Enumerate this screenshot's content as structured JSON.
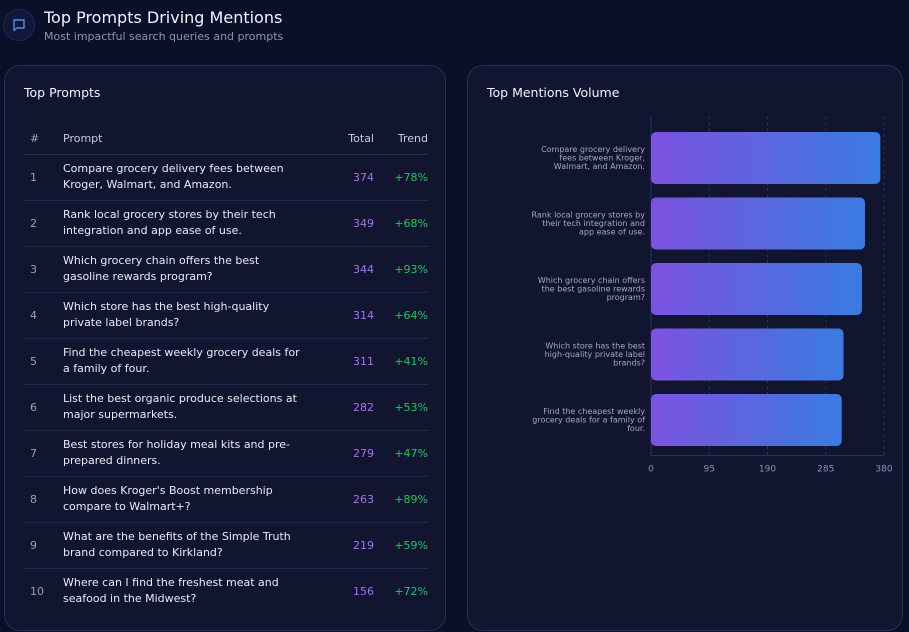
{
  "header": {
    "title": "Top Prompts Driving Mentions",
    "subtitle": "Most impactful search queries and prompts",
    "icon": "chat-bubble-icon"
  },
  "left": {
    "title": "Top Prompts",
    "columns": [
      "#",
      "Prompt",
      "Total",
      "Trend"
    ],
    "rows": [
      {
        "n": "1",
        "prompt": "Compare grocery delivery fees between Kroger, Walmart, and Amazon.",
        "total": "374",
        "trend": "+78%"
      },
      {
        "n": "2",
        "prompt": "Rank local grocery stores by their tech integration and app ease of use.",
        "total": "349",
        "trend": "+68%"
      },
      {
        "n": "3",
        "prompt": "Which grocery chain offers the best gasoline rewards program?",
        "total": "344",
        "trend": "+93%"
      },
      {
        "n": "4",
        "prompt": "Which store has the best high-quality private label brands?",
        "total": "314",
        "trend": "+64%"
      },
      {
        "n": "5",
        "prompt": "Find the cheapest weekly grocery deals for a family of four.",
        "total": "311",
        "trend": "+41%"
      },
      {
        "n": "6",
        "prompt": "List the best organic produce selections at major supermarkets.",
        "total": "282",
        "trend": "+53%"
      },
      {
        "n": "7",
        "prompt": "Best stores for holiday meal kits and pre-prepared dinners.",
        "total": "279",
        "trend": "+47%"
      },
      {
        "n": "8",
        "prompt": "How does Kroger's Boost membership compare to Walmart+?",
        "total": "263",
        "trend": "+89%"
      },
      {
        "n": "9",
        "prompt": "What are the benefits of the Simple Truth brand compared to Kirkland?",
        "total": "219",
        "trend": "+59%"
      },
      {
        "n": "10",
        "prompt": "Where can I find the freshest meat and seafood in the Midwest?",
        "total": "156",
        "trend": "+72%"
      }
    ]
  },
  "right": {
    "title": "Top Mentions Volume"
  },
  "chart_data": {
    "type": "bar",
    "orientation": "horizontal",
    "title": "Top Mentions Volume",
    "categories": [
      [
        "Compare grocery delivery",
        "fees between Kroger,",
        "Walmart, and Amazon."
      ],
      [
        "Rank local grocery stores by",
        "their tech integration and",
        "app ease of use."
      ],
      [
        "Which grocery chain offers",
        "the best gasoline rewards",
        "program?"
      ],
      [
        "Which store has the best",
        "high-quality private label",
        "brands?"
      ],
      [
        "Find the cheapest weekly",
        "grocery deals for a family of",
        "four."
      ]
    ],
    "values": [
      374,
      349,
      344,
      314,
      311
    ],
    "xlim": [
      0,
      380
    ],
    "xticks": [
      "0",
      "95",
      "190",
      "285",
      "380"
    ],
    "gradient": [
      "#7c52e0",
      "#3a7be0"
    ],
    "grid": true
  }
}
